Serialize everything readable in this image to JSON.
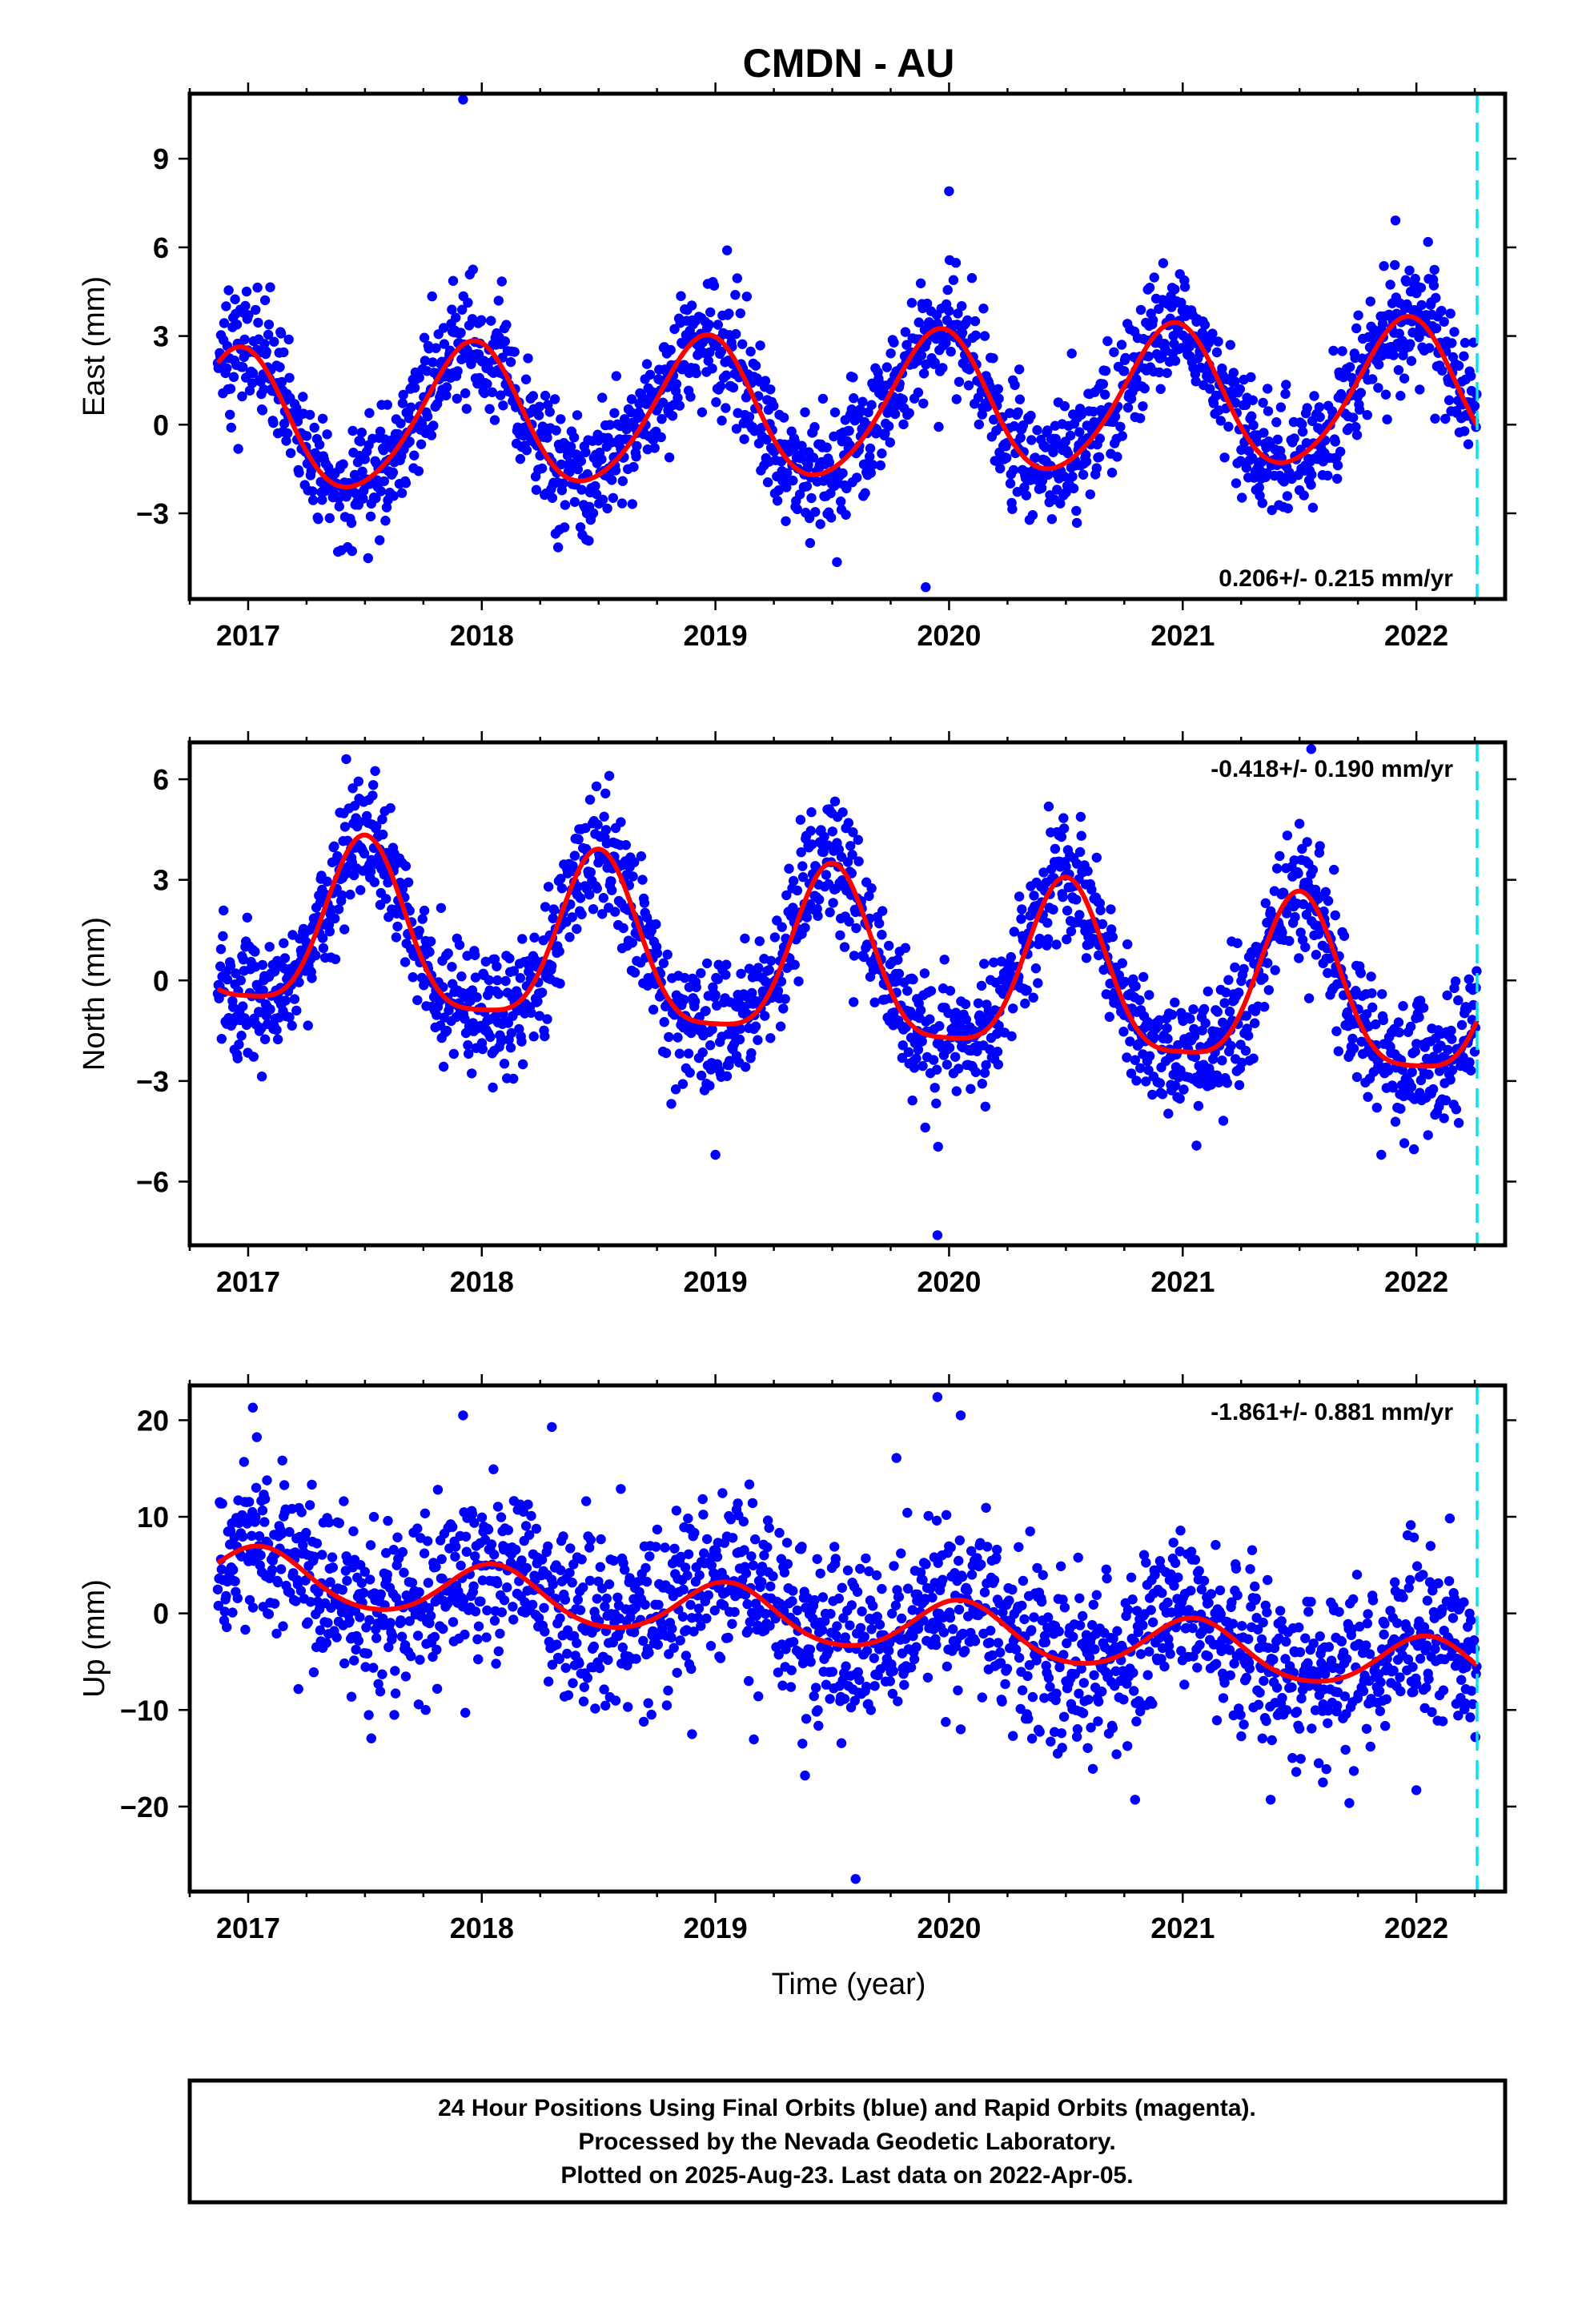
{
  "page": {
    "title": "CMDN - AU",
    "xlabel": "Time (year)",
    "footer": [
      "24 Hour Positions Using Final Orbits (blue) and Rapid Orbits (magenta).",
      "Processed by the Nevada Geodetic Laboratory.",
      "Plotted on 2025-Aug-23. Last data on 2022-Apr-05."
    ]
  },
  "colors": {
    "final_orbits": "#0000ff",
    "model_fit": "#ff0000",
    "last_data_marker": "#00e5ee",
    "frame": "#000000"
  },
  "chart_data": [
    {
      "type": "scatter",
      "title": "CMDN - AU",
      "ylabel": "East (mm)",
      "xlabel": "",
      "xlim": [
        2016.75,
        2022.38
      ],
      "ylim": [
        -5.9,
        11.2
      ],
      "xticks": [
        "2017",
        "2018",
        "2019",
        "2020",
        "2021",
        "2022"
      ],
      "yticks": [
        "-3",
        "0",
        "3",
        "6",
        "9"
      ],
      "ytick_values": [
        -3,
        0,
        3,
        6,
        9
      ],
      "rate_label": "0.206+/- 0.215 mm/yr",
      "rate_position": "bottom-right",
      "last_data_line_x": 2022.26,
      "grid": false,
      "model": {
        "x0": 2016.87,
        "x1": 2022.26,
        "offset": 0.0,
        "trend_mm_per_yr": 0.206,
        "annual_amp": 2.4,
        "annual_peak": 0.95,
        "semiannual_amp": 0.25,
        "semiannual_peak": 0.0
      },
      "scatter": {
        "start": 2016.87,
        "end": 2022.26,
        "scatter_sd": 1.05
      },
      "outliers": [
        [
          2017.92,
          11.0
        ],
        [
          2020.0,
          7.9
        ],
        [
          2019.05,
          5.9
        ],
        [
          2019.9,
          -5.5
        ]
      ],
      "series": [
        {
          "name": "Final Orbits (blue)"
        },
        {
          "name": "Model fit"
        }
      ]
    },
    {
      "type": "scatter",
      "title": "",
      "ylabel": "North (mm)",
      "xlabel": "",
      "xlim": [
        2016.75,
        2022.38
      ],
      "ylim": [
        -7.9,
        7.1
      ],
      "xticks": [
        "2017",
        "2018",
        "2019",
        "2020",
        "2021",
        "2022"
      ],
      "yticks": [
        "-6",
        "-3",
        "0",
        "3",
        "6"
      ],
      "ytick_values": [
        -6,
        -3,
        0,
        3,
        6
      ],
      "rate_label": "-0.418+/- 0.190 mm/yr",
      "rate_position": "top-right",
      "last_data_line_x": 2022.26,
      "grid": false,
      "model": {
        "x0": 2016.87,
        "x1": 2022.26,
        "offset": 1.5,
        "trend_mm_per_yr": -0.418,
        "annual_amp": 2.5,
        "annual_peak": 0.5,
        "semiannual_amp": 0.6,
        "semiannual_peak": 0.5
      },
      "scatter": {
        "start": 2016.87,
        "end": 2022.26,
        "scatter_sd": 0.95
      },
      "outliers": [
        [
          2017.42,
          6.6
        ],
        [
          2021.55,
          6.9
        ],
        [
          2019.95,
          -7.6
        ],
        [
          2019.0,
          -5.2
        ],
        [
          2021.85,
          -5.2
        ]
      ],
      "series": [
        {
          "name": "Final Orbits (blue)"
        },
        {
          "name": "Model fit"
        }
      ]
    },
    {
      "type": "scatter",
      "title": "",
      "ylabel": "Up (mm)",
      "xlabel": "Time (year)",
      "xlim": [
        2016.75,
        2022.38
      ],
      "ylim": [
        -28.8,
        23.6
      ],
      "xticks": [
        "2017",
        "2018",
        "2019",
        "2020",
        "2021",
        "2022"
      ],
      "yticks": [
        "-20",
        "-10",
        "0",
        "10",
        "20"
      ],
      "ytick_values": [
        -20,
        -10,
        0,
        10,
        20
      ],
      "rate_label": "-1.861+/- 0.881 mm/yr",
      "rate_position": "top-right",
      "last_data_line_x": 2022.26,
      "grid": false,
      "model": {
        "x0": 2016.87,
        "x1": 2022.26,
        "offset": 4.2,
        "trend_mm_per_yr": -1.861,
        "annual_amp": 2.8,
        "annual_peak": 0.05,
        "semiannual_amp": 0.3,
        "semiannual_peak": 0.05
      },
      "scatter": {
        "start": 2016.87,
        "end": 2022.26,
        "scatter_sd": 4.4
      },
      "outliers": [
        [
          2017.02,
          21.3
        ],
        [
          2017.92,
          20.5
        ],
        [
          2019.95,
          22.4
        ],
        [
          2020.05,
          20.5
        ],
        [
          2018.3,
          19.3
        ],
        [
          2019.6,
          -27.5
        ],
        [
          2021.6,
          -17.5
        ],
        [
          2022.0,
          -18.3
        ],
        [
          2018.9,
          -12.5
        ],
        [
          2020.05,
          -12.0
        ]
      ],
      "series": [
        {
          "name": "Final Orbits (blue)"
        },
        {
          "name": "Model fit"
        }
      ]
    }
  ]
}
